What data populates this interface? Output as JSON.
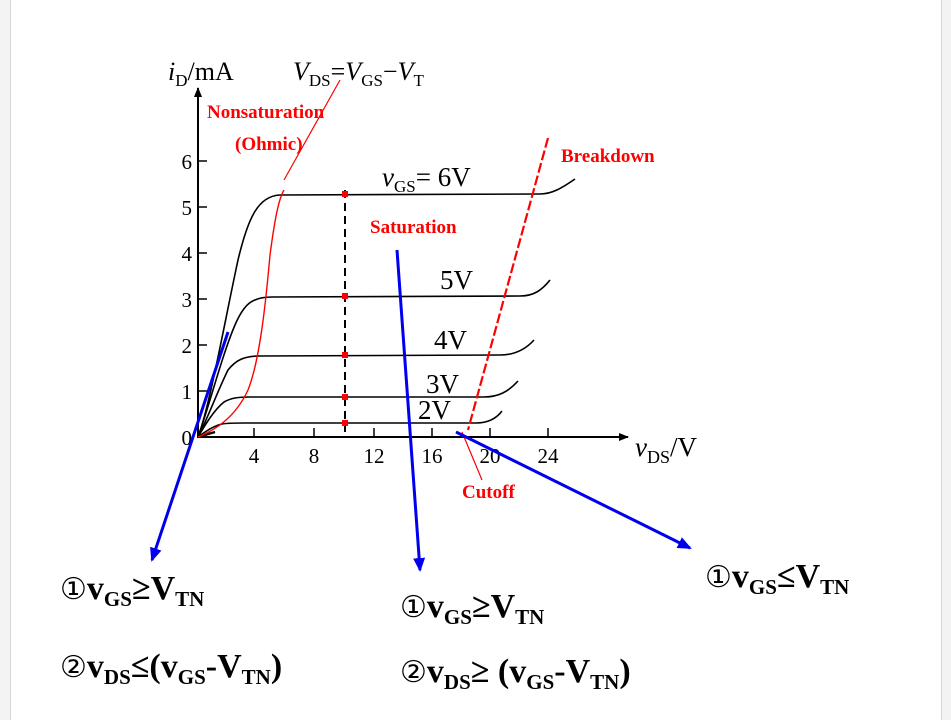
{
  "graph": {
    "y_label_main": "i",
    "y_label_sub": "D",
    "y_label_unit": "/mA",
    "boundary_label_v": "V",
    "boundary_label_ds": "DS",
    "boundary_label_eq": "=",
    "boundary_label_v2": "V",
    "boundary_label_gs": "GS",
    "boundary_label_minus": "−",
    "boundary_label_v3": "V",
    "boundary_label_t": "T",
    "x_label_main": "v",
    "x_label_sub": "DS",
    "x_label_unit": "/V",
    "y_ticks": [
      "0",
      "1",
      "2",
      "3",
      "4",
      "5",
      "6"
    ],
    "x_ticks": [
      "4",
      "8",
      "12",
      "16",
      "20",
      "24"
    ],
    "curve_labels": {
      "vgs6_v": "v",
      "vgs6_sub": "GS",
      "vgs6_eq": "= 6V",
      "vgs5": "5V",
      "vgs4": "4V",
      "vgs3": "3V",
      "vgs2": "2V"
    },
    "regions": {
      "nonsaturation": "Nonsaturation",
      "ohmic": "(Ohmic)",
      "saturation": "Saturation",
      "breakdown": "Breakdown",
      "cutoff": "Cutoff"
    }
  },
  "chart_data": {
    "type": "line",
    "title": "",
    "xlabel": "vDS/V",
    "ylabel": "iD/mA",
    "xlim": [
      0,
      26
    ],
    "ylim": [
      0,
      7
    ],
    "x_ticks": [
      4,
      8,
      12,
      16,
      20,
      24
    ],
    "y_ticks": [
      0,
      1,
      2,
      3,
      4,
      5,
      6
    ],
    "series": [
      {
        "name": "vGS = 6V",
        "saturation_current": 5.3,
        "breakdown_vds": 23
      },
      {
        "name": "5V",
        "saturation_current": 3.1,
        "breakdown_vds": 21.2
      },
      {
        "name": "4V",
        "saturation_current": 1.8,
        "breakdown_vds": 19.7
      },
      {
        "name": "3V",
        "saturation_current": 0.9,
        "breakdown_vds": 18.8
      },
      {
        "name": "2V",
        "saturation_current": 0.3,
        "breakdown_vds": 18.2
      }
    ],
    "markers_vds": 10,
    "annotations": [
      "Nonsaturation (Ohmic)",
      "Saturation",
      "Breakdown",
      "Cutoff",
      "VDS=VGS−VT"
    ]
  },
  "conditions": {
    "ohmic": {
      "c1_num": "①",
      "c1_v": "v",
      "c1_sub": "GS",
      "c1_op": "≥",
      "c1_rhs": "V",
      "c1_rhs_sub": "TN",
      "c2_num": "②",
      "c2_v": "v",
      "c2_sub": "DS",
      "c2_op": "≤(",
      "c2_inner_v": "v",
      "c2_inner_sub": "GS",
      "c2_minus": "-",
      "c2_rhs": "V",
      "c2_rhs_sub": "TN",
      "c2_close": ")"
    },
    "saturation": {
      "c1_num": "①",
      "c1_v": "v",
      "c1_sub": "GS",
      "c1_op": "≥",
      "c1_rhs": "V",
      "c1_rhs_sub": "TN",
      "c2_num": "②",
      "c2_v": "v",
      "c2_sub": "DS",
      "c2_op": "≥ (",
      "c2_inner_v": "v",
      "c2_inner_sub": "GS",
      "c2_minus": "-",
      "c2_rhs": "V",
      "c2_rhs_sub": "TN",
      "c2_close": ")"
    },
    "cutoff": {
      "c1_num": "①",
      "c1_v": "v",
      "c1_sub": "GS",
      "c1_op": "≤",
      "c1_rhs": "V",
      "c1_rhs_sub": "TN"
    }
  },
  "colors": {
    "curve": "#000000",
    "red": "#ff0000",
    "arrow_blue": "#0000ee"
  }
}
